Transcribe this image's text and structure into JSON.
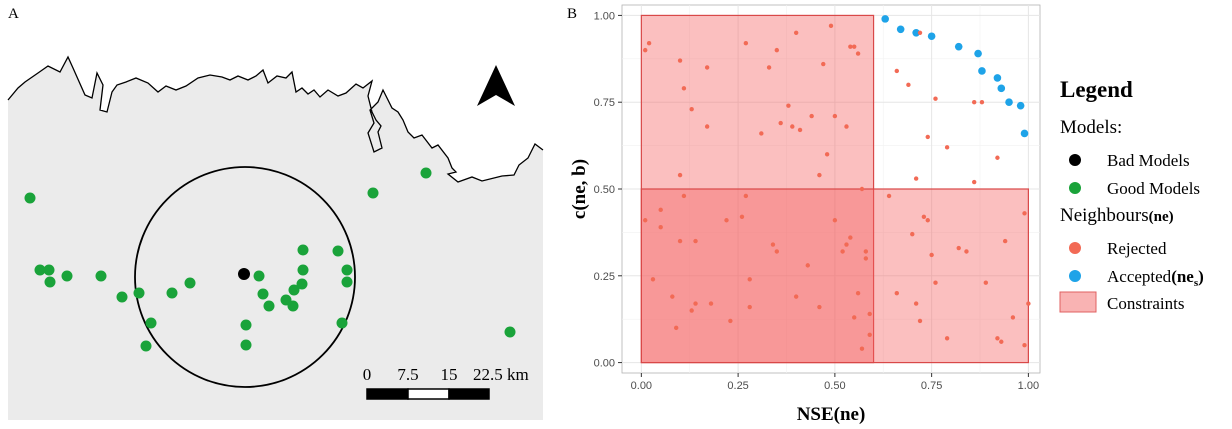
{
  "panel_a": {
    "label": "A",
    "scale_labels": [
      "0",
      "7.5",
      "15",
      "22.5 km"
    ],
    "colors": {
      "land": "#ebebeb",
      "good": "#1aa33a",
      "bad": "#000000"
    },
    "icon": "north-arrow-icon"
  },
  "panel_b": {
    "label": "B"
  },
  "chart_data": {
    "type": "scatter",
    "xlabel": "NSE(ne)",
    "ylabel": "c(ne, b)",
    "xlim": [
      -0.05,
      1.03
    ],
    "ylim": [
      -0.03,
      1.03
    ],
    "xticks": [
      "0.00",
      "0.25",
      "0.50",
      "0.75",
      "1.00"
    ],
    "yticks": [
      "0.00",
      "0.25",
      "0.50",
      "0.75",
      "1.00"
    ],
    "grid": true,
    "constraints": [
      {
        "x": [
          0.0,
          0.6
        ],
        "y": [
          0.0,
          1.0
        ]
      },
      {
        "x": [
          0.0,
          1.0
        ],
        "y": [
          0.0,
          0.5
        ]
      }
    ],
    "series": [
      {
        "name": "Accepted",
        "color": "#1ea3e8",
        "points": [
          [
            0.63,
            0.99
          ],
          [
            0.67,
            0.96
          ],
          [
            0.71,
            0.95
          ],
          [
            0.75,
            0.94
          ],
          [
            0.82,
            0.91
          ],
          [
            0.87,
            0.89
          ],
          [
            0.88,
            0.84
          ],
          [
            0.92,
            0.82
          ],
          [
            0.93,
            0.79
          ],
          [
            0.95,
            0.75
          ],
          [
            0.98,
            0.74
          ],
          [
            0.99,
            0.66
          ]
        ]
      },
      {
        "name": "Rejected",
        "color": "#f26a55",
        "points": [
          [
            0.01,
            0.9
          ],
          [
            0.02,
            0.92
          ],
          [
            0.1,
            0.87
          ],
          [
            0.11,
            0.79
          ],
          [
            0.13,
            0.73
          ],
          [
            0.17,
            0.85
          ],
          [
            0.17,
            0.68
          ],
          [
            0.27,
            0.92
          ],
          [
            0.31,
            0.66
          ],
          [
            0.33,
            0.85
          ],
          [
            0.35,
            0.9
          ],
          [
            0.36,
            0.69
          ],
          [
            0.38,
            0.74
          ],
          [
            0.39,
            0.68
          ],
          [
            0.4,
            0.95
          ],
          [
            0.41,
            0.67
          ],
          [
            0.44,
            0.71
          ],
          [
            0.46,
            0.54
          ],
          [
            0.47,
            0.86
          ],
          [
            0.48,
            0.6
          ],
          [
            0.5,
            0.71
          ],
          [
            0.54,
            0.91
          ],
          [
            0.55,
            0.91
          ],
          [
            0.56,
            0.89
          ],
          [
            0.53,
            0.68
          ],
          [
            0.1,
            0.54
          ],
          [
            0.49,
            0.97
          ],
          [
            0.66,
            0.84
          ],
          [
            0.69,
            0.8
          ],
          [
            0.72,
            0.95
          ],
          [
            0.74,
            0.65
          ],
          [
            0.76,
            0.76
          ],
          [
            0.79,
            0.62
          ],
          [
            0.86,
            0.75
          ],
          [
            0.88,
            0.75
          ],
          [
            0.92,
            0.59
          ],
          [
            0.86,
            0.52
          ],
          [
            0.71,
            0.53
          ],
          [
            0.01,
            0.41
          ],
          [
            0.03,
            0.24
          ],
          [
            0.05,
            0.44
          ],
          [
            0.05,
            0.39
          ],
          [
            0.08,
            0.19
          ],
          [
            0.1,
            0.35
          ],
          [
            0.11,
            0.48
          ],
          [
            0.14,
            0.35
          ],
          [
            0.14,
            0.17
          ],
          [
            0.13,
            0.15
          ],
          [
            0.18,
            0.17
          ],
          [
            0.22,
            0.41
          ],
          [
            0.23,
            0.12
          ],
          [
            0.26,
            0.42
          ],
          [
            0.27,
            0.48
          ],
          [
            0.28,
            0.24
          ],
          [
            0.28,
            0.16
          ],
          [
            0.34,
            0.34
          ],
          [
            0.35,
            0.32
          ],
          [
            0.4,
            0.19
          ],
          [
            0.43,
            0.28
          ],
          [
            0.46,
            0.16
          ],
          [
            0.5,
            0.41
          ],
          [
            0.52,
            0.32
          ],
          [
            0.53,
            0.34
          ],
          [
            0.54,
            0.36
          ],
          [
            0.55,
            0.13
          ],
          [
            0.56,
            0.2
          ],
          [
            0.57,
            0.5
          ],
          [
            0.58,
            0.3
          ],
          [
            0.58,
            0.32
          ],
          [
            0.59,
            0.08
          ],
          [
            0.59,
            0.14
          ],
          [
            0.57,
            0.04
          ],
          [
            0.09,
            0.1
          ],
          [
            0.64,
            0.48
          ],
          [
            0.66,
            0.2
          ],
          [
            0.7,
            0.37
          ],
          [
            0.71,
            0.17
          ],
          [
            0.72,
            0.12
          ],
          [
            0.73,
            0.42
          ],
          [
            0.74,
            0.41
          ],
          [
            0.75,
            0.31
          ],
          [
            0.76,
            0.23
          ],
          [
            0.79,
            0.07
          ],
          [
            0.82,
            0.33
          ],
          [
            0.84,
            0.32
          ],
          [
            0.89,
            0.23
          ],
          [
            0.92,
            0.07
          ],
          [
            0.93,
            0.06
          ],
          [
            0.94,
            0.35
          ],
          [
            0.96,
            0.13
          ],
          [
            0.99,
            0.43
          ],
          [
            0.99,
            0.05
          ],
          [
            1.0,
            0.17
          ]
        ]
      }
    ]
  },
  "legend": {
    "title": "Legend",
    "models_heading": "Models:",
    "bad_models": "Bad Models",
    "good_models": "Good Models",
    "neighbours_heading": "Neighbours",
    "neighbours_suffix": "(ne)",
    "rejected": "Rejected",
    "accepted": "Accepted",
    "accepted_suffix": "(ne",
    "accepted_sub": "s",
    "accepted_close": ")",
    "constraints": "Constraints"
  }
}
